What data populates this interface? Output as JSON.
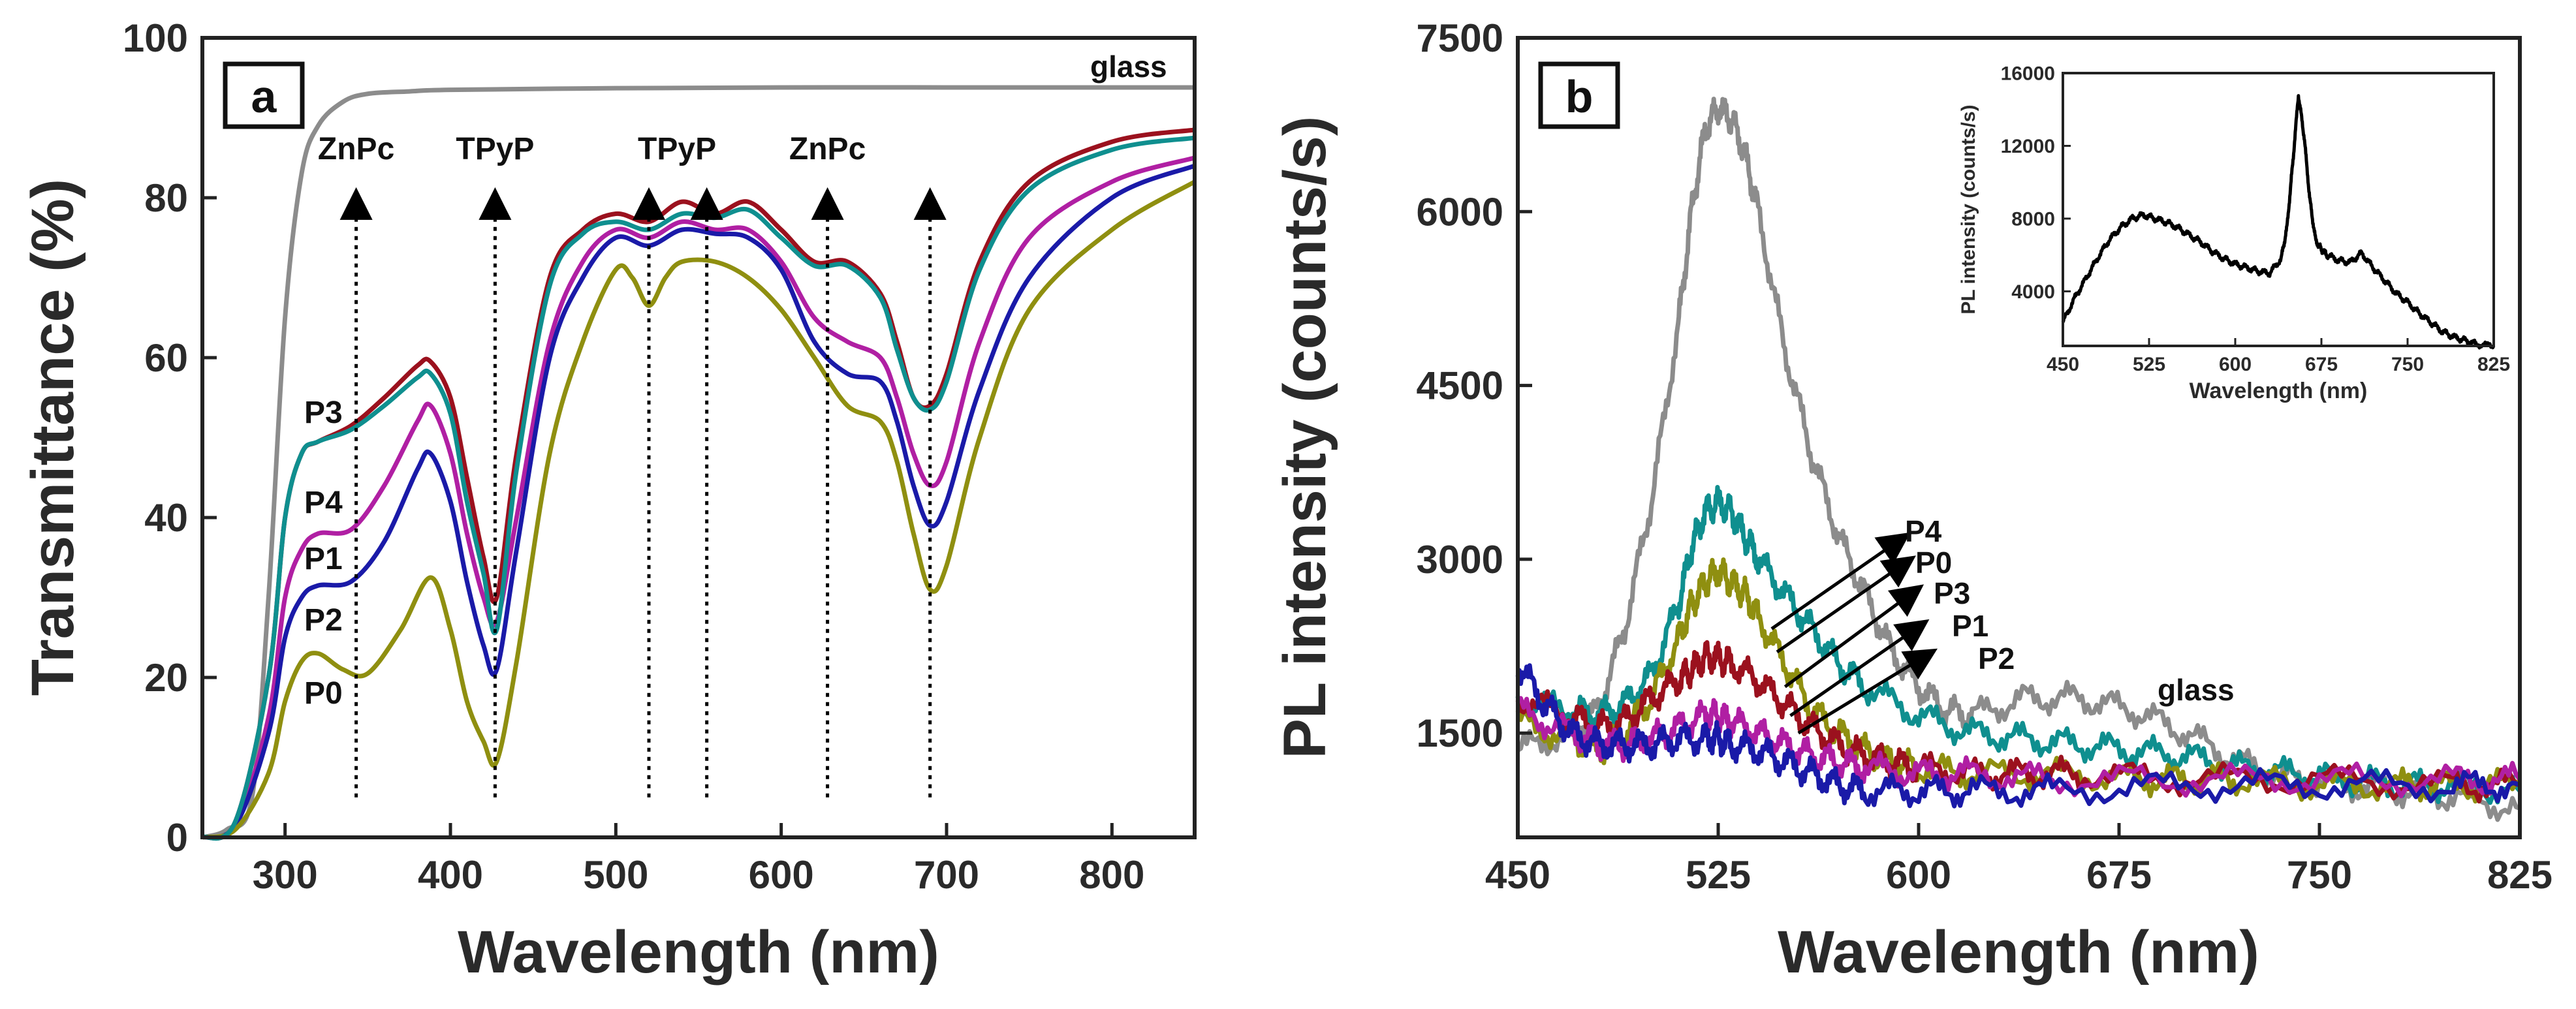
{
  "chart_data": [
    {
      "panel_label": "a",
      "type": "line",
      "xlabel": "Wavelength  (nm)",
      "ylabel": "Transmittance  (%)",
      "xlim": [
        250,
        850
      ],
      "ylim": [
        0,
        100
      ],
      "xticks": [
        300,
        400,
        500,
        600,
        700,
        800
      ],
      "yticks": [
        0,
        20,
        40,
        60,
        80,
        100
      ],
      "series": [
        {
          "name": "glass",
          "color": "#8c8c8c",
          "x": [
            250,
            265,
            280,
            290,
            300,
            310,
            320,
            335,
            350,
            375,
            400,
            500,
            600,
            700,
            800,
            850
          ],
          "y": [
            0,
            1,
            5,
            30,
            65,
            83,
            89,
            92,
            93,
            93.3,
            93.5,
            93.7,
            93.8,
            93.8,
            93.8,
            93.8
          ]
        },
        {
          "name": "P3",
          "color": "#9b111e",
          "x": [
            250,
            270,
            290,
            300,
            310,
            320,
            340,
            360,
            380,
            388,
            400,
            410,
            420,
            428,
            440,
            460,
            480,
            500,
            520,
            540,
            560,
            580,
            600,
            620,
            640,
            660,
            670,
            680,
            690,
            700,
            720,
            750,
            800,
            850
          ],
          "y": [
            0,
            2,
            20,
            40,
            48,
            49.5,
            51.5,
            55,
            59,
            59.5,
            55,
            45,
            35,
            30,
            48,
            70,
            76,
            78,
            77,
            79.5,
            78,
            79.5,
            76,
            72,
            72,
            68,
            62,
            55,
            54,
            58,
            72,
            82,
            87,
            88.5
          ]
        },
        {
          "name": "P4",
          "color": "#b01fa3",
          "x": [
            250,
            270,
            290,
            300,
            310,
            320,
            340,
            360,
            380,
            388,
            400,
            410,
            420,
            428,
            440,
            460,
            480,
            500,
            520,
            540,
            560,
            580,
            600,
            620,
            640,
            660,
            670,
            680,
            690,
            700,
            720,
            750,
            800,
            850
          ],
          "y": [
            0,
            1.5,
            15,
            30,
            36,
            38,
            38.5,
            44,
            52,
            54,
            48,
            38,
            30,
            27,
            40,
            62,
            72,
            76,
            75,
            77,
            76,
            76,
            72,
            65,
            62,
            60,
            55,
            48,
            44,
            47,
            62,
            75,
            82,
            85
          ]
        },
        {
          "name": "P1",
          "color": "#1a1aa8",
          "x": [
            250,
            270,
            290,
            300,
            310,
            320,
            340,
            360,
            380,
            388,
            400,
            410,
            420,
            428,
            440,
            460,
            480,
            500,
            520,
            540,
            560,
            580,
            600,
            620,
            640,
            660,
            670,
            680,
            690,
            700,
            720,
            750,
            800,
            850
          ],
          "y": [
            0,
            1.5,
            13,
            25,
            30,
            31.5,
            32,
            37,
            46,
            48,
            42,
            32,
            24,
            21,
            36,
            60,
            70,
            75,
            74,
            76,
            75.5,
            75,
            71,
            62,
            58,
            57,
            52,
            44,
            39,
            42,
            56,
            70,
            80,
            84
          ]
        },
        {
          "name": "P0",
          "color": "#8f8f10",
          "x": [
            250,
            270,
            290,
            300,
            310,
            320,
            335,
            350,
            370,
            388,
            400,
            410,
            420,
            428,
            440,
            460,
            480,
            500,
            510,
            520,
            530,
            540,
            560,
            580,
            600,
            620,
            640,
            660,
            670,
            680,
            690,
            700,
            720,
            750,
            800,
            850
          ],
          "y": [
            0,
            1,
            8,
            17,
            22,
            23,
            21,
            20.5,
            26,
            32.5,
            26,
            17,
            12,
            9.5,
            22,
            48,
            62,
            71,
            70,
            66.5,
            70,
            72,
            72,
            70,
            66,
            60,
            54,
            52,
            47,
            38,
            31,
            34,
            50,
            66,
            76,
            82
          ]
        },
        {
          "name": "P2",
          "color": "#0f8f8f",
          "x": [
            250,
            270,
            290,
            300,
            310,
            320,
            340,
            360,
            380,
            388,
            400,
            410,
            420,
            428,
            440,
            460,
            480,
            500,
            520,
            540,
            560,
            580,
            600,
            620,
            640,
            660,
            670,
            680,
            690,
            700,
            720,
            750,
            800,
            850
          ],
          "y": [
            0,
            2,
            20,
            40,
            48,
            49.5,
            51,
            54,
            57.5,
            58,
            53,
            42,
            33,
            26,
            46,
            69,
            75.5,
            77,
            76,
            78,
            77.5,
            78.5,
            75,
            71.5,
            71.5,
            67.5,
            61,
            55,
            53.5,
            57,
            71,
            81,
            86,
            87.5
          ]
        }
      ],
      "series_labels": [
        "glass",
        "P3",
        "P4",
        "P1",
        "P2",
        "P0"
      ],
      "markers": [
        {
          "label": "ZnPc",
          "x": 343
        },
        {
          "label": "TPyP",
          "x": 427
        },
        {
          "label": "TPyP",
          "x": 520,
          "label_x": 537
        },
        {
          "label": "",
          "x": 555
        },
        {
          "label": "ZnPc",
          "x": 628
        },
        {
          "label": "",
          "x": 690
        }
      ]
    },
    {
      "panel_label": "b",
      "type": "line",
      "xlabel": "Wavelength  (nm)",
      "ylabel": "PL  intensity  (counts/s)",
      "xlim": [
        450,
        825
      ],
      "ylim": [
        600,
        7500
      ],
      "xticks": [
        450,
        525,
        600,
        675,
        750,
        825
      ],
      "yticks": [
        1500,
        3000,
        4500,
        6000,
        7500
      ],
      "series": [
        {
          "name": "glass",
          "color": "#8c8c8c",
          "x": [
            450,
            470,
            480,
            490,
            500,
            510,
            515,
            520,
            525,
            530,
            535,
            540,
            550,
            560,
            570,
            580,
            590,
            600,
            610,
            620,
            640,
            660,
            680,
            700,
            720,
            740,
            760,
            780,
            800,
            825
          ],
          "y": [
            1350,
            1500,
            1700,
            2400,
            3500,
            5000,
            6000,
            6700,
            6900,
            6800,
            6500,
            6000,
            4800,
            3900,
            3200,
            2700,
            2200,
            1900,
            1700,
            1650,
            1800,
            1800,
            1700,
            1500,
            1250,
            1100,
            1050,
            1000,
            950,
            850
          ]
        },
        {
          "name": "P2",
          "color": "#0f8f8f",
          "x": [
            450,
            470,
            480,
            490,
            500,
            510,
            515,
            520,
            525,
            530,
            535,
            540,
            550,
            560,
            570,
            580,
            600,
            620,
            640,
            660,
            680,
            700,
            720,
            740,
            760,
            780,
            800,
            825
          ],
          "y": [
            1800,
            1700,
            1650,
            1750,
            2000,
            2600,
            3100,
            3400,
            3500,
            3400,
            3200,
            3000,
            2700,
            2400,
            2100,
            1900,
            1650,
            1500,
            1450,
            1400,
            1350,
            1300,
            1200,
            1150,
            1100,
            1050,
            1050,
            1000
          ]
        },
        {
          "name": "P0",
          "color": "#8f8f10",
          "x": [
            450,
            470,
            480,
            490,
            500,
            510,
            515,
            520,
            525,
            530,
            535,
            540,
            550,
            560,
            570,
            580,
            590,
            600,
            620,
            650,
            680,
            700,
            720,
            750,
            780,
            800,
            825
          ],
          "y": [
            1600,
            1450,
            1350,
            1500,
            1800,
            2300,
            2600,
            2800,
            2900,
            2800,
            2700,
            2500,
            2100,
            1700,
            1500,
            1350,
            1250,
            1200,
            1150,
            1150,
            1100,
            1100,
            1100,
            1050,
            1050,
            1050,
            1050
          ]
        },
        {
          "name": "P3",
          "color": "#9b111e",
          "x": [
            450,
            470,
            480,
            490,
            500,
            510,
            515,
            520,
            525,
            530,
            540,
            550,
            560,
            570,
            580,
            590,
            600,
            620,
            640,
            660,
            700,
            750,
            800,
            825
          ],
          "y": [
            1800,
            1650,
            1550,
            1600,
            1800,
            1950,
            2050,
            2150,
            2150,
            2100,
            1950,
            1750,
            1550,
            1400,
            1300,
            1250,
            1200,
            1150,
            1150,
            1150,
            1100,
            1100,
            1050,
            1050
          ]
        },
        {
          "name": "P1",
          "color": "#b01fa3",
          "x": [
            450,
            470,
            480,
            490,
            500,
            510,
            520,
            525,
            530,
            540,
            550,
            560,
            570,
            580,
            600,
            620,
            650,
            700,
            750,
            800,
            825
          ],
          "y": [
            1700,
            1500,
            1400,
            1400,
            1450,
            1550,
            1650,
            1650,
            1600,
            1500,
            1400,
            1300,
            1250,
            1200,
            1150,
            1150,
            1100,
            1100,
            1100,
            1100,
            1100
          ]
        },
        {
          "name": "P4",
          "color": "#1a1aa8",
          "x": [
            450,
            460,
            470,
            480,
            490,
            500,
            510,
            520,
            525,
            530,
            540,
            550,
            560,
            570,
            580,
            600,
            620,
            650,
            700,
            750,
            800,
            825
          ],
          "y": [
            2100,
            1750,
            1500,
            1400,
            1400,
            1400,
            1450,
            1450,
            1450,
            1400,
            1350,
            1250,
            1150,
            1050,
            1000,
            1000,
            1000,
            1000,
            1050,
            1050,
            1050,
            1050
          ]
        }
      ],
      "series_labels": [
        "P4",
        "P0",
        "P3",
        "P1",
        "P2",
        "glass"
      ],
      "arrows": [
        {
          "from": [
            545,
            2400
          ],
          "to": [
            595,
            3200
          ]
        },
        {
          "from": [
            547,
            2200
          ],
          "to": [
            597,
            3000
          ]
        },
        {
          "from": [
            550,
            1900
          ],
          "to": [
            600,
            2750
          ]
        },
        {
          "from": [
            552,
            1650
          ],
          "to": [
            602,
            2450
          ]
        },
        {
          "from": [
            555,
            1500
          ],
          "to": [
            605,
            2200
          ]
        }
      ],
      "inset": {
        "type": "line",
        "xlabel": "Wavelength  (nm)",
        "ylabel": "PL  intensity  (counts/s)",
        "xlim": [
          450,
          825
        ],
        "ylim": [
          1000,
          16000
        ],
        "xticks": [
          450,
          525,
          600,
          675,
          750,
          825
        ],
        "yticks": [
          4000,
          8000,
          12000,
          16000
        ],
        "series": [
          {
            "name": "inset",
            "color": "#000000",
            "x": [
              450,
              460,
              470,
              480,
              490,
              500,
              510,
              520,
              530,
              540,
              550,
              560,
              570,
              580,
              590,
              600,
              610,
              620,
              630,
              640,
              645,
              650,
              655,
              660,
              665,
              670,
              675,
              680,
              690,
              700,
              710,
              720,
              730,
              740,
              750,
              760,
              770,
              780,
              790,
              800,
              810,
              825
            ],
            "y": [
              2300,
              3600,
              4700,
              5800,
              6800,
              7500,
              8000,
              8200,
              8000,
              7800,
              7500,
              7100,
              6700,
              6200,
              5800,
              5500,
              5300,
              5100,
              5000,
              5800,
              7500,
              11000,
              14800,
              12500,
              9000,
              6800,
              6300,
              6000,
              5700,
              5600,
              6100,
              5300,
              4600,
              3900,
              3400,
              2800,
              2300,
              1800,
              1500,
              1300,
              1100,
              1000
            ]
          }
        ]
      }
    }
  ]
}
